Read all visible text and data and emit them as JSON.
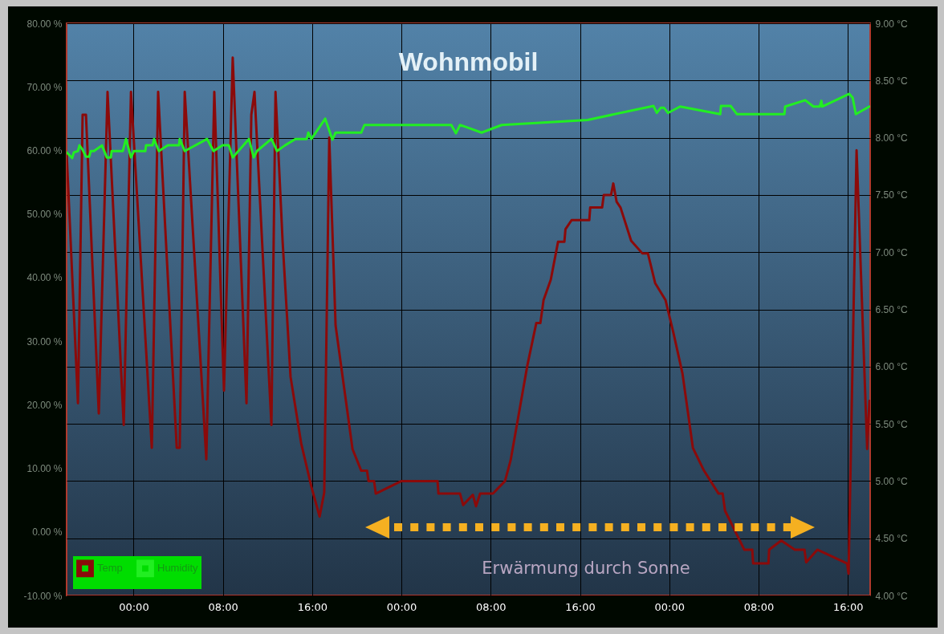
{
  "chart_data": {
    "type": "line",
    "title": "Wohnmobil",
    "annotations": [
      "Erwärmung durch Sonne"
    ],
    "xlim": [
      "--01-01T18:00",
      "--01-04T18:00"
    ],
    "xticks": [
      {
        "value": "--01-02T00:00",
        "label": "00:00"
      },
      {
        "value": "--01-02T08:00",
        "label": "08:00"
      },
      {
        "value": "--01-02T16:00",
        "label": "16:00"
      },
      {
        "value": "--01-03T00:00",
        "label": "00:00"
      },
      {
        "value": "--01-03T08:00",
        "label": "08:00"
      },
      {
        "value": "--01-03T16:00",
        "label": "16:00"
      },
      {
        "value": "--01-04T00:00",
        "label": "00:00"
      },
      {
        "value": "--01-04T08:00",
        "label": "08:00"
      },
      {
        "value": "--01-04T16:00",
        "label": "16:00"
      }
    ],
    "ylim": [
      -10,
      80
    ],
    "yticks": [
      {
        "value": -10,
        "label": "-10.00 %"
      },
      {
        "value": 0,
        "label": "0.00 %"
      },
      {
        "value": 10,
        "label": "10.00 %"
      },
      {
        "value": 20,
        "label": "20.00 %"
      },
      {
        "value": 30,
        "label": "30.00 %"
      },
      {
        "value": 40,
        "label": "40.00 %"
      },
      {
        "value": 50,
        "label": "50.00 %"
      },
      {
        "value": 60,
        "label": "60.00 %"
      },
      {
        "value": 70,
        "label": "70.00 %"
      },
      {
        "value": 80,
        "label": "80.00 %"
      }
    ],
    "y2lim": [
      4,
      9
    ],
    "y2ticks": [
      {
        "value": 4,
        "label": "4.00 °C"
      },
      {
        "value": 4.5,
        "label": "4.50 °C"
      },
      {
        "value": 5,
        "label": "5.00 °C"
      },
      {
        "value": 5.5,
        "label": "5.50 °C"
      },
      {
        "value": 6,
        "label": "6.00 °C"
      },
      {
        "value": 6.5,
        "label": "6.50 °C"
      },
      {
        "value": 7,
        "label": "7.00 °C"
      },
      {
        "value": 7.5,
        "label": "7.50 °C"
      },
      {
        "value": 8,
        "label": "8.00 °C"
      },
      {
        "value": 8.5,
        "label": "8.50 °C"
      },
      {
        "value": 9,
        "label": "9.00 °C"
      }
    ],
    "grid": true,
    "legend": "bottom left",
    "line_style": "solid",
    "series": [
      {
        "name": "Temp",
        "color": "#8b0a0a",
        "axis": "y2",
        "x": [
          "--01-01T18:00",
          "--01-01T19:01",
          "--01-01T19:26",
          "--01-01T19:44",
          "--01-01T20:53",
          "--01-01T21:40",
          "--01-01T23:07",
          "--01-01T23:46",
          "--01-02T01:38",
          "--01-02T02:12",
          "--01-02T03:52",
          "--01-02T04:08",
          "--01-02T04:35",
          "--01-02T06:31",
          "--01-02T07:14",
          "--01-02T08:06",
          "--01-02T08:53",
          "--01-02T10:07",
          "--01-02T10:33",
          "--01-02T10:50",
          "--01-02T12:21",
          "--01-02T12:43",
          "--01-02T13:21",
          "--01-02T14:04",
          "--01-02T15:01",
          "--01-02T15:56",
          "--01-02T16:40",
          "--01-02T17:05",
          "--01-02T17:32",
          "--01-02T18:06",
          "--01-02T19:37",
          "--01-02T20:24",
          "--01-02T20:55",
          "--01-02T21:03",
          "--01-02T21:33",
          "--01-02T21:42",
          "--01-03T00:00",
          "--01-03T03:14",
          "--01-03T03:19",
          "--01-03T05:15",
          "--01-03T05:32",
          "--01-03T06:24",
          "--01-03T06:41",
          "--01-03T07:03",
          "--01-03T08:12",
          "--01-03T09:17",
          "--01-03T09:47",
          "--01-03T11:17",
          "--01-03T12:05",
          "--01-03T12:27",
          "--01-03T12:44",
          "--01-03T13:23",
          "--01-03T14:02",
          "--01-03T14:36",
          "--01-03T14:42",
          "--01-03T15:15",
          "--01-03T16:50",
          "--01-03T16:55",
          "--01-03T17:59",
          "--01-03T18:08",
          "--01-03T18:47",
          "--01-03T18:59",
          "--01-03T19:17",
          "--01-03T19:38",
          "--01-03T20:35",
          "--01-03T21:35",
          "--01-03T22:05",
          "--01-03T22:44",
          "--01-03T23:40",
          "--01-04T00:23",
          "--01-04T01:11",
          "--01-04T02:07",
          "--01-04T03:07",
          "--01-04T04:25",
          "--01-04T04:47",
          "--01-04T05:00",
          "--01-04T06:43",
          "--01-04T07:26",
          "--01-04T07:31",
          "--01-04T08:53",
          "--01-04T08:57",
          "--01-04T10:02",
          "--01-04T11:15",
          "--01-04T12:07",
          "--01-04T12:16",
          "--01-04T13:16",
          "--01-04T15:56",
          "--01-04T16:04",
          "--01-04T16:47",
          "--01-04T17:44",
          "--01-04T17:56"
        ],
        "values": [
          7.87,
          5.68,
          8.2,
          8.2,
          5.59,
          8.4,
          5.49,
          8.4,
          5.29,
          8.4,
          5.29,
          5.29,
          8.4,
          5.19,
          8.4,
          5.79,
          8.7,
          5.68,
          8.2,
          8.4,
          5.49,
          8.4,
          7.1,
          5.91,
          5.33,
          4.95,
          4.69,
          4.9,
          8.0,
          6.36,
          5.28,
          5.09,
          5.09,
          5.0,
          5.0,
          4.89,
          5.0,
          5.0,
          4.89,
          4.89,
          4.79,
          4.88,
          4.78,
          4.89,
          4.89,
          5.0,
          5.18,
          6.01,
          6.38,
          6.38,
          6.58,
          6.76,
          7.09,
          7.09,
          7.2,
          7.28,
          7.28,
          7.39,
          7.39,
          7.5,
          7.5,
          7.6,
          7.44,
          7.39,
          7.1,
          6.99,
          6.99,
          6.73,
          6.58,
          6.29,
          5.94,
          5.29,
          5.09,
          4.89,
          4.89,
          4.74,
          4.4,
          4.4,
          4.28,
          4.28,
          4.4,
          4.48,
          4.4,
          4.4,
          4.29,
          4.4,
          4.28,
          4.19,
          7.89,
          5.28,
          5.7
        ]
      },
      {
        "name": "Humidity",
        "color": "#22ee22",
        "x": [
          "--01-01T18:00",
          "--01-01T18:17",
          "--01-01T18:30",
          "--01-01T18:39",
          "--01-01T19:01",
          "--01-01T19:09",
          "--01-01T19:26",
          "--01-01T19:44",
          "--01-01T20:01",
          "--01-01T20:10",
          "--01-01T20:27",
          "--01-01T21:10",
          "--01-01T21:36",
          "--01-01T21:58",
          "--01-01T22:02",
          "--01-01T23:02",
          "--01-01T23:19",
          "--01-01T23:46",
          "--01-02T00:02",
          "--01-02T01:03",
          "--01-02T01:07",
          "--01-02T01:42",
          "--01-02T01:50",
          "--01-02T02:16",
          "--01-02T03:04",
          "--01-02T04:04",
          "--01-02T04:08",
          "--01-02T04:35",
          "--01-02T06:35",
          "--01-02T07:10",
          "--01-02T07:58",
          "--01-02T08:32",
          "--01-02T08:53",
          "--01-02T10:20",
          "--01-02T10:46",
          "--01-02T11:03",
          "--01-02T12:21",
          "--01-02T12:51",
          "--01-02T13:34",
          "--01-02T14:30",
          "--01-02T15:31",
          "--01-02T15:39",
          "--01-02T15:56",
          "--01-02T17:10",
          "--01-02T17:49",
          "--01-02T18:06",
          "--01-02T20:24",
          "--01-02T20:41",
          "--01-03T04:28",
          "--01-03T04:53",
          "--01-03T05:15",
          "--01-03T05:46",
          "--01-03T07:11",
          "--01-03T08:59",
          "--01-03T16:41",
          "--01-03T22:35",
          "--01-03T22:53",
          "--01-03T23:14",
          "--01-03T23:32",
          "--01-03T23:53",
          "--01-04T00:58",
          "--01-04T04:34",
          "--01-04T04:38",
          "--01-04T05:30",
          "--01-04T06:04",
          "--01-04T10:19",
          "--01-04T10:23",
          "--01-04T12:11",
          "--01-04T12:55",
          "--01-04T13:29",
          "--01-04T13:38",
          "--01-04T13:42",
          "--01-04T16:08",
          "--01-04T16:26",
          "--01-04T16:43",
          "--01-04T17:56"
        ],
        "values": [
          59.7,
          59.2,
          58.8,
          59.7,
          59.9,
          60.8,
          60.1,
          59.0,
          59.0,
          59.9,
          59.9,
          60.8,
          58.9,
          58.9,
          59.9,
          59.9,
          61.8,
          58.9,
          59.9,
          59.9,
          60.8,
          60.8,
          61.8,
          59.9,
          60.8,
          60.8,
          61.8,
          59.9,
          61.8,
          59.9,
          60.8,
          60.8,
          58.9,
          61.8,
          58.9,
          59.9,
          61.8,
          59.9,
          60.8,
          61.8,
          61.8,
          62.8,
          61.8,
          65.0,
          61.7,
          62.8,
          62.8,
          64.0,
          64.0,
          62.7,
          64.0,
          63.7,
          62.8,
          64.0,
          64.8,
          67.0,
          65.9,
          66.7,
          66.7,
          65.9,
          66.9,
          65.7,
          67.0,
          67.0,
          65.7,
          65.7,
          66.9,
          67.9,
          66.9,
          66.9,
          67.8,
          66.9,
          68.9,
          68.3,
          65.7,
          66.9
        ]
      }
    ]
  }
}
